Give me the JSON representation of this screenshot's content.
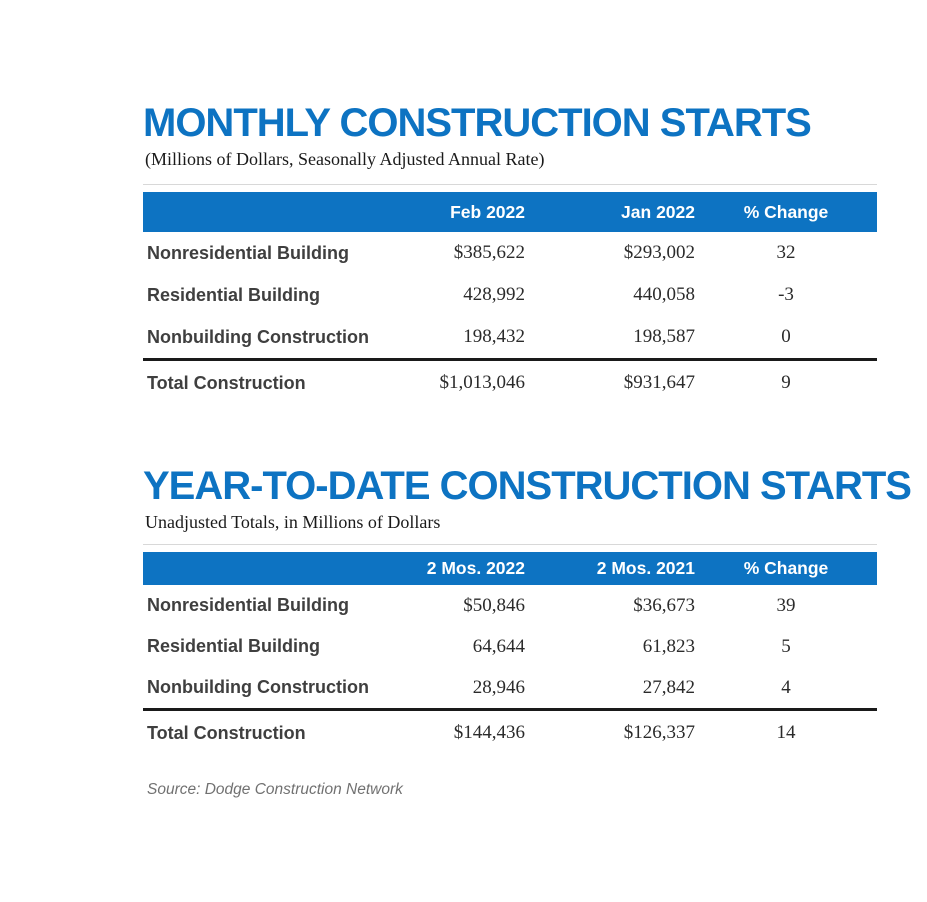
{
  "colors": {
    "accent": "#0d73c2",
    "header_text": "#ffffff",
    "row_label": "#3f3f3f",
    "divider": "#1a1a1a",
    "source_text": "#717171"
  },
  "monthly": {
    "title": "MONTHLY CONSTRUCTION STARTS",
    "subtitle": "(Millions of Dollars, Seasonally Adjusted Annual Rate)",
    "columns": [
      "Feb 2022",
      "Jan 2022",
      "% Change"
    ],
    "rows": [
      {
        "label": "Nonresidential Building",
        "values": [
          "$385,622",
          "$293,002",
          "32"
        ]
      },
      {
        "label": "Residential Building",
        "values": [
          "428,992",
          "440,058",
          "-3"
        ]
      },
      {
        "label": "Nonbuilding Construction",
        "values": [
          "198,432",
          "198,587",
          "0"
        ]
      }
    ],
    "total": {
      "label": "Total Construction",
      "values": [
        "$1,013,046",
        "$931,647",
        "9"
      ]
    }
  },
  "ytd": {
    "title": "YEAR-TO-DATE CONSTRUCTION STARTS",
    "subtitle": "Unadjusted Totals, in Millions of Dollars",
    "columns": [
      "2 Mos. 2022",
      "2 Mos. 2021",
      "% Change"
    ],
    "rows": [
      {
        "label": "Nonresidential Building",
        "values": [
          "$50,846",
          "$36,673",
          "39"
        ]
      },
      {
        "label": "Residential Building",
        "values": [
          "64,644",
          "61,823",
          "5"
        ]
      },
      {
        "label": "Nonbuilding Construction",
        "values": [
          "28,946",
          "27,842",
          "4"
        ]
      }
    ],
    "total": {
      "label": "Total Construction",
      "values": [
        "$144,436",
        "$126,337",
        "14"
      ]
    }
  },
  "source": "Source: Dodge Construction Network",
  "chart_data": [
    {
      "type": "table",
      "title": "MONTHLY CONSTRUCTION STARTS",
      "subtitle": "(Millions of Dollars, Seasonally Adjusted Annual Rate)",
      "columns": [
        "",
        "Feb 2022",
        "Jan 2022",
        "% Change"
      ],
      "rows": [
        [
          "Nonresidential Building",
          385622,
          293002,
          32
        ],
        [
          "Residential Building",
          428992,
          440058,
          -3
        ],
        [
          "Nonbuilding Construction",
          198432,
          198587,
          0
        ],
        [
          "Total Construction",
          1013046,
          931647,
          9
        ]
      ]
    },
    {
      "type": "table",
      "title": "YEAR-TO-DATE CONSTRUCTION STARTS",
      "subtitle": "Unadjusted Totals, in Millions of Dollars",
      "columns": [
        "",
        "2 Mos. 2022",
        "2 Mos. 2021",
        "% Change"
      ],
      "rows": [
        [
          "Nonresidential Building",
          50846,
          36673,
          39
        ],
        [
          "Residential Building",
          64644,
          61823,
          5
        ],
        [
          "Nonbuilding Construction",
          28946,
          27842,
          4
        ],
        [
          "Total Construction",
          144436,
          126337,
          14
        ]
      ]
    }
  ]
}
